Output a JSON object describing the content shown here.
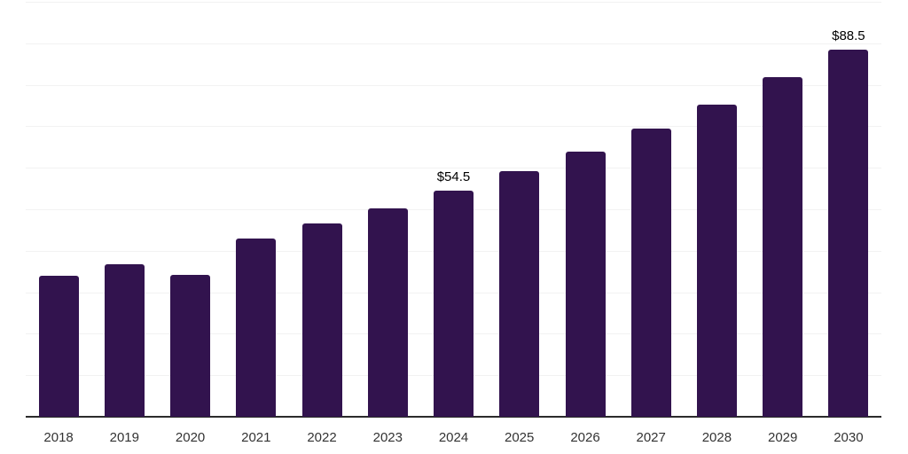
{
  "chart_data": {
    "type": "bar",
    "title": "",
    "xlabel": "",
    "ylabel": "",
    "categories": [
      "2018",
      "2019",
      "2020",
      "2021",
      "2022",
      "2023",
      "2024",
      "2025",
      "2026",
      "2027",
      "2028",
      "2029",
      "2030"
    ],
    "values": [
      34.0,
      36.7,
      34.2,
      42.9,
      46.6,
      50.3,
      54.5,
      59.1,
      64.0,
      69.4,
      75.3,
      81.8,
      88.5
    ],
    "data_labels": [
      {
        "index": 6,
        "text": "$54.5"
      },
      {
        "index": 12,
        "text": "$88.5"
      }
    ],
    "ylim": [
      0,
      100
    ],
    "grid_step": 10,
    "grid": true,
    "legend": false,
    "colors": {
      "bar": "#32134E",
      "gridline": "#F2F2F2",
      "axis_line": "#2B2B2B",
      "tick_label": "#333333",
      "data_label": "#000000",
      "background": "#FFFFFF"
    }
  }
}
